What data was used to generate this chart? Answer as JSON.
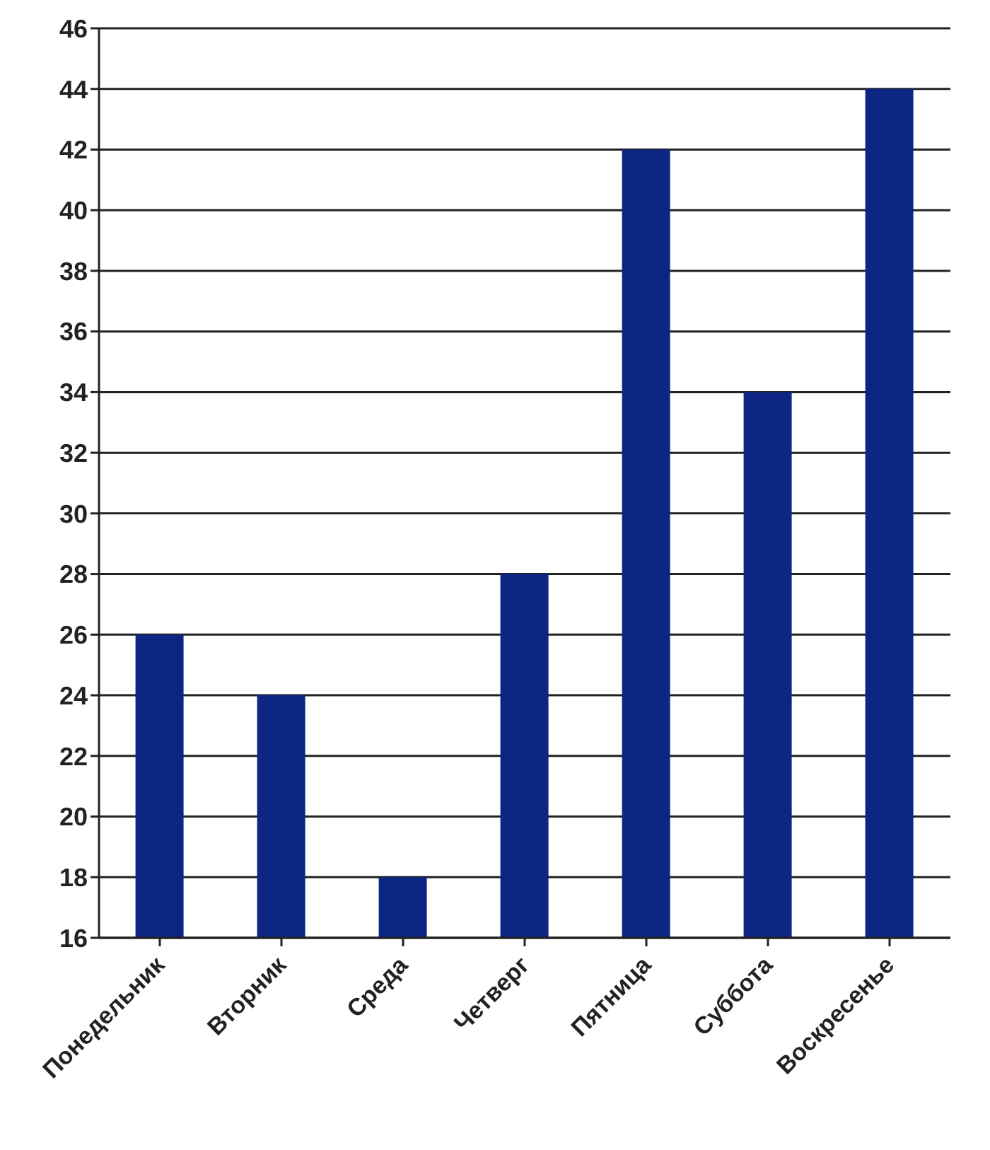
{
  "chart_data": {
    "type": "bar",
    "categories": [
      "Понедельник",
      "Вторник",
      "Среда",
      "Четверг",
      "Пятница",
      "Суббота",
      "Воскресенье"
    ],
    "values": [
      26,
      24,
      18,
      28,
      42,
      34,
      44
    ],
    "color": "#0d2583",
    "ylim": [
      16,
      46
    ],
    "yticks": [
      16,
      18,
      20,
      22,
      24,
      26,
      28,
      30,
      32,
      34,
      36,
      38,
      40,
      42,
      44,
      46
    ],
    "grid": "y"
  }
}
